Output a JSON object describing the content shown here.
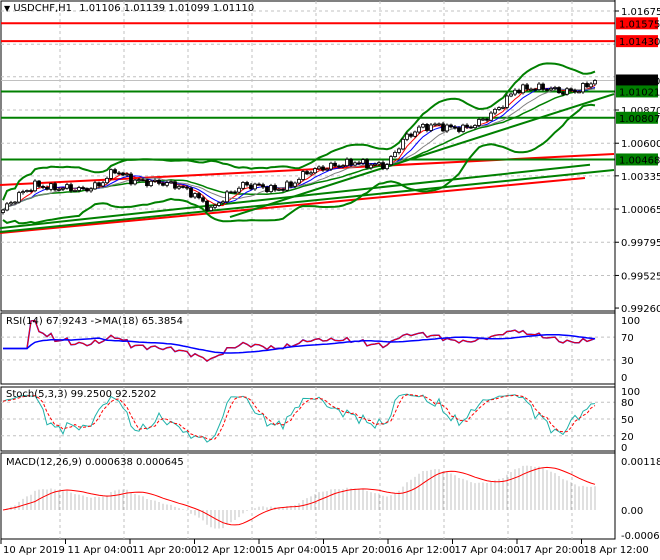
{
  "header": {
    "symbol": "USDCHF,H1",
    "open": "1.01106",
    "high": "1.01139",
    "low": "1.01099",
    "close": "1.01110",
    "menu_icon": "triangle-down-icon"
  },
  "price_axis": {
    "ticks": [
      "1.01675",
      "1.00870",
      "1.00600",
      "1.00335",
      "1.00065",
      "0.99795",
      "0.99525",
      "0.99260"
    ],
    "tags": [
      {
        "label": "1.01575",
        "color": "#ff0000"
      },
      {
        "label": "1.01430",
        "color": "#ff0000"
      },
      {
        "label": "1.01110",
        "color": "#000000"
      },
      {
        "label": "1.01021",
        "color": "#008000"
      },
      {
        "label": "1.00807",
        "color": "#008000"
      },
      {
        "label": "1.00468",
        "color": "#008000"
      }
    ]
  },
  "rsi": {
    "label": "RSI(14) 67.9243  ->MA(18) 65.3854",
    "ticks": [
      "100",
      "70",
      "30",
      "0"
    ]
  },
  "stoch": {
    "label": "Stoch(5,3,3) 99.2500 92.5202",
    "ticks": [
      "100",
      "80",
      "50",
      "20",
      "0"
    ]
  },
  "macd": {
    "label": "MACD(12,26,9) 0.000638 0.000645",
    "ticks": [
      "0.001189",
      "0.00",
      "-0.00061"
    ]
  },
  "time_axis": [
    "10 Apr 2019",
    "11 Apr 04:00",
    "11 Apr 20:00",
    "12 Apr 12:00",
    "15 Apr 04:00",
    "15 Apr 20:00",
    "16 Apr 12:00",
    "17 Apr 04:00",
    "17 Apr 20:00",
    "18 Apr 12:00"
  ],
  "chart_data": {
    "type": "candlestick",
    "timeframe": "H1",
    "ylim": [
      0.9926,
      1.01675
    ],
    "grid": true,
    "close_anchors_every_4_bars": [
      1.00057,
      1.00179,
      1.0026,
      1.00236,
      1.00236,
      1.0022,
      1.0026,
      1.00382,
      1.00301,
      1.00285,
      1.00277,
      1.00252,
      1.00179,
      1.00057,
      1.00179,
      1.0026,
      1.00252,
      1.0022,
      1.0026,
      1.00366,
      1.00399,
      1.00423,
      1.00447,
      1.00423,
      1.00423,
      1.00626,
      1.00724,
      1.00748,
      1.00724,
      1.00724,
      1.00789,
      1.00886,
      1.01033,
      1.01049,
      1.01049,
      1.01016,
      1.01033,
      1.0111
    ],
    "horizontal_levels": [
      {
        "price": 1.01575,
        "color": "#ff0000"
      },
      {
        "price": 1.0143,
        "color": "#ff0000"
      },
      {
        "price": 1.01021,
        "color": "#008000"
      },
      {
        "price": 1.00807,
        "color": "#008000"
      },
      {
        "price": 1.00468,
        "color": "#008000"
      }
    ],
    "colors": {
      "bollinger": "#008000",
      "rsi": "#ff0000",
      "rsi_ma": "#0000ff",
      "stoch_main": "#20b2aa",
      "stoch_signal": "#ff0000",
      "macd_hist": "#c0c0c0",
      "macd_signal": "#ff0000"
    }
  }
}
